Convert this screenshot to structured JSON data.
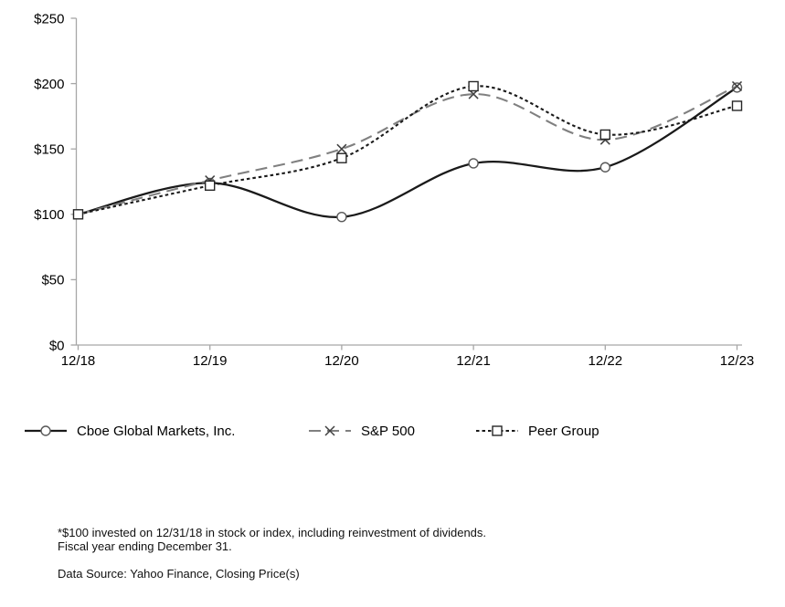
{
  "chart_data": {
    "type": "line",
    "title": "",
    "xlabel": "",
    "ylabel": "",
    "categories": [
      "12/18",
      "12/19",
      "12/20",
      "12/21",
      "12/22",
      "12/23"
    ],
    "series": [
      {
        "name": "Cboe Global Markets, Inc.",
        "values": [
          100,
          124,
          98,
          139,
          136,
          197
        ],
        "color": "#1a1a1a",
        "dash": "solid",
        "marker": "circle"
      },
      {
        "name": "S&P 500",
        "values": [
          100,
          126,
          150,
          192,
          157,
          198
        ],
        "color": "#808080",
        "dash": "long-dash",
        "marker": "x"
      },
      {
        "name": "Peer Group",
        "values": [
          100,
          122,
          143,
          198,
          161,
          183
        ],
        "color": "#1a1a1a",
        "dash": "dot",
        "marker": "square"
      }
    ],
    "ylim": [
      0,
      250
    ],
    "ytick_step": 50,
    "ytick_labels": [
      "$0",
      "$50",
      "$100",
      "$150",
      "$200",
      "$250"
    ],
    "value_prefix": "$",
    "grid": false,
    "smoothed_lines": true,
    "legend_position": "bottom",
    "axis_color": "#a6a6a6"
  },
  "footnotes": {
    "line1": "*$100 invested on 12/31/18 in stock or index, including reinvestment of dividends.",
    "line2": "Fiscal year ending December 31.",
    "source": "Data Source: Yahoo Finance, Closing Price(s)"
  }
}
